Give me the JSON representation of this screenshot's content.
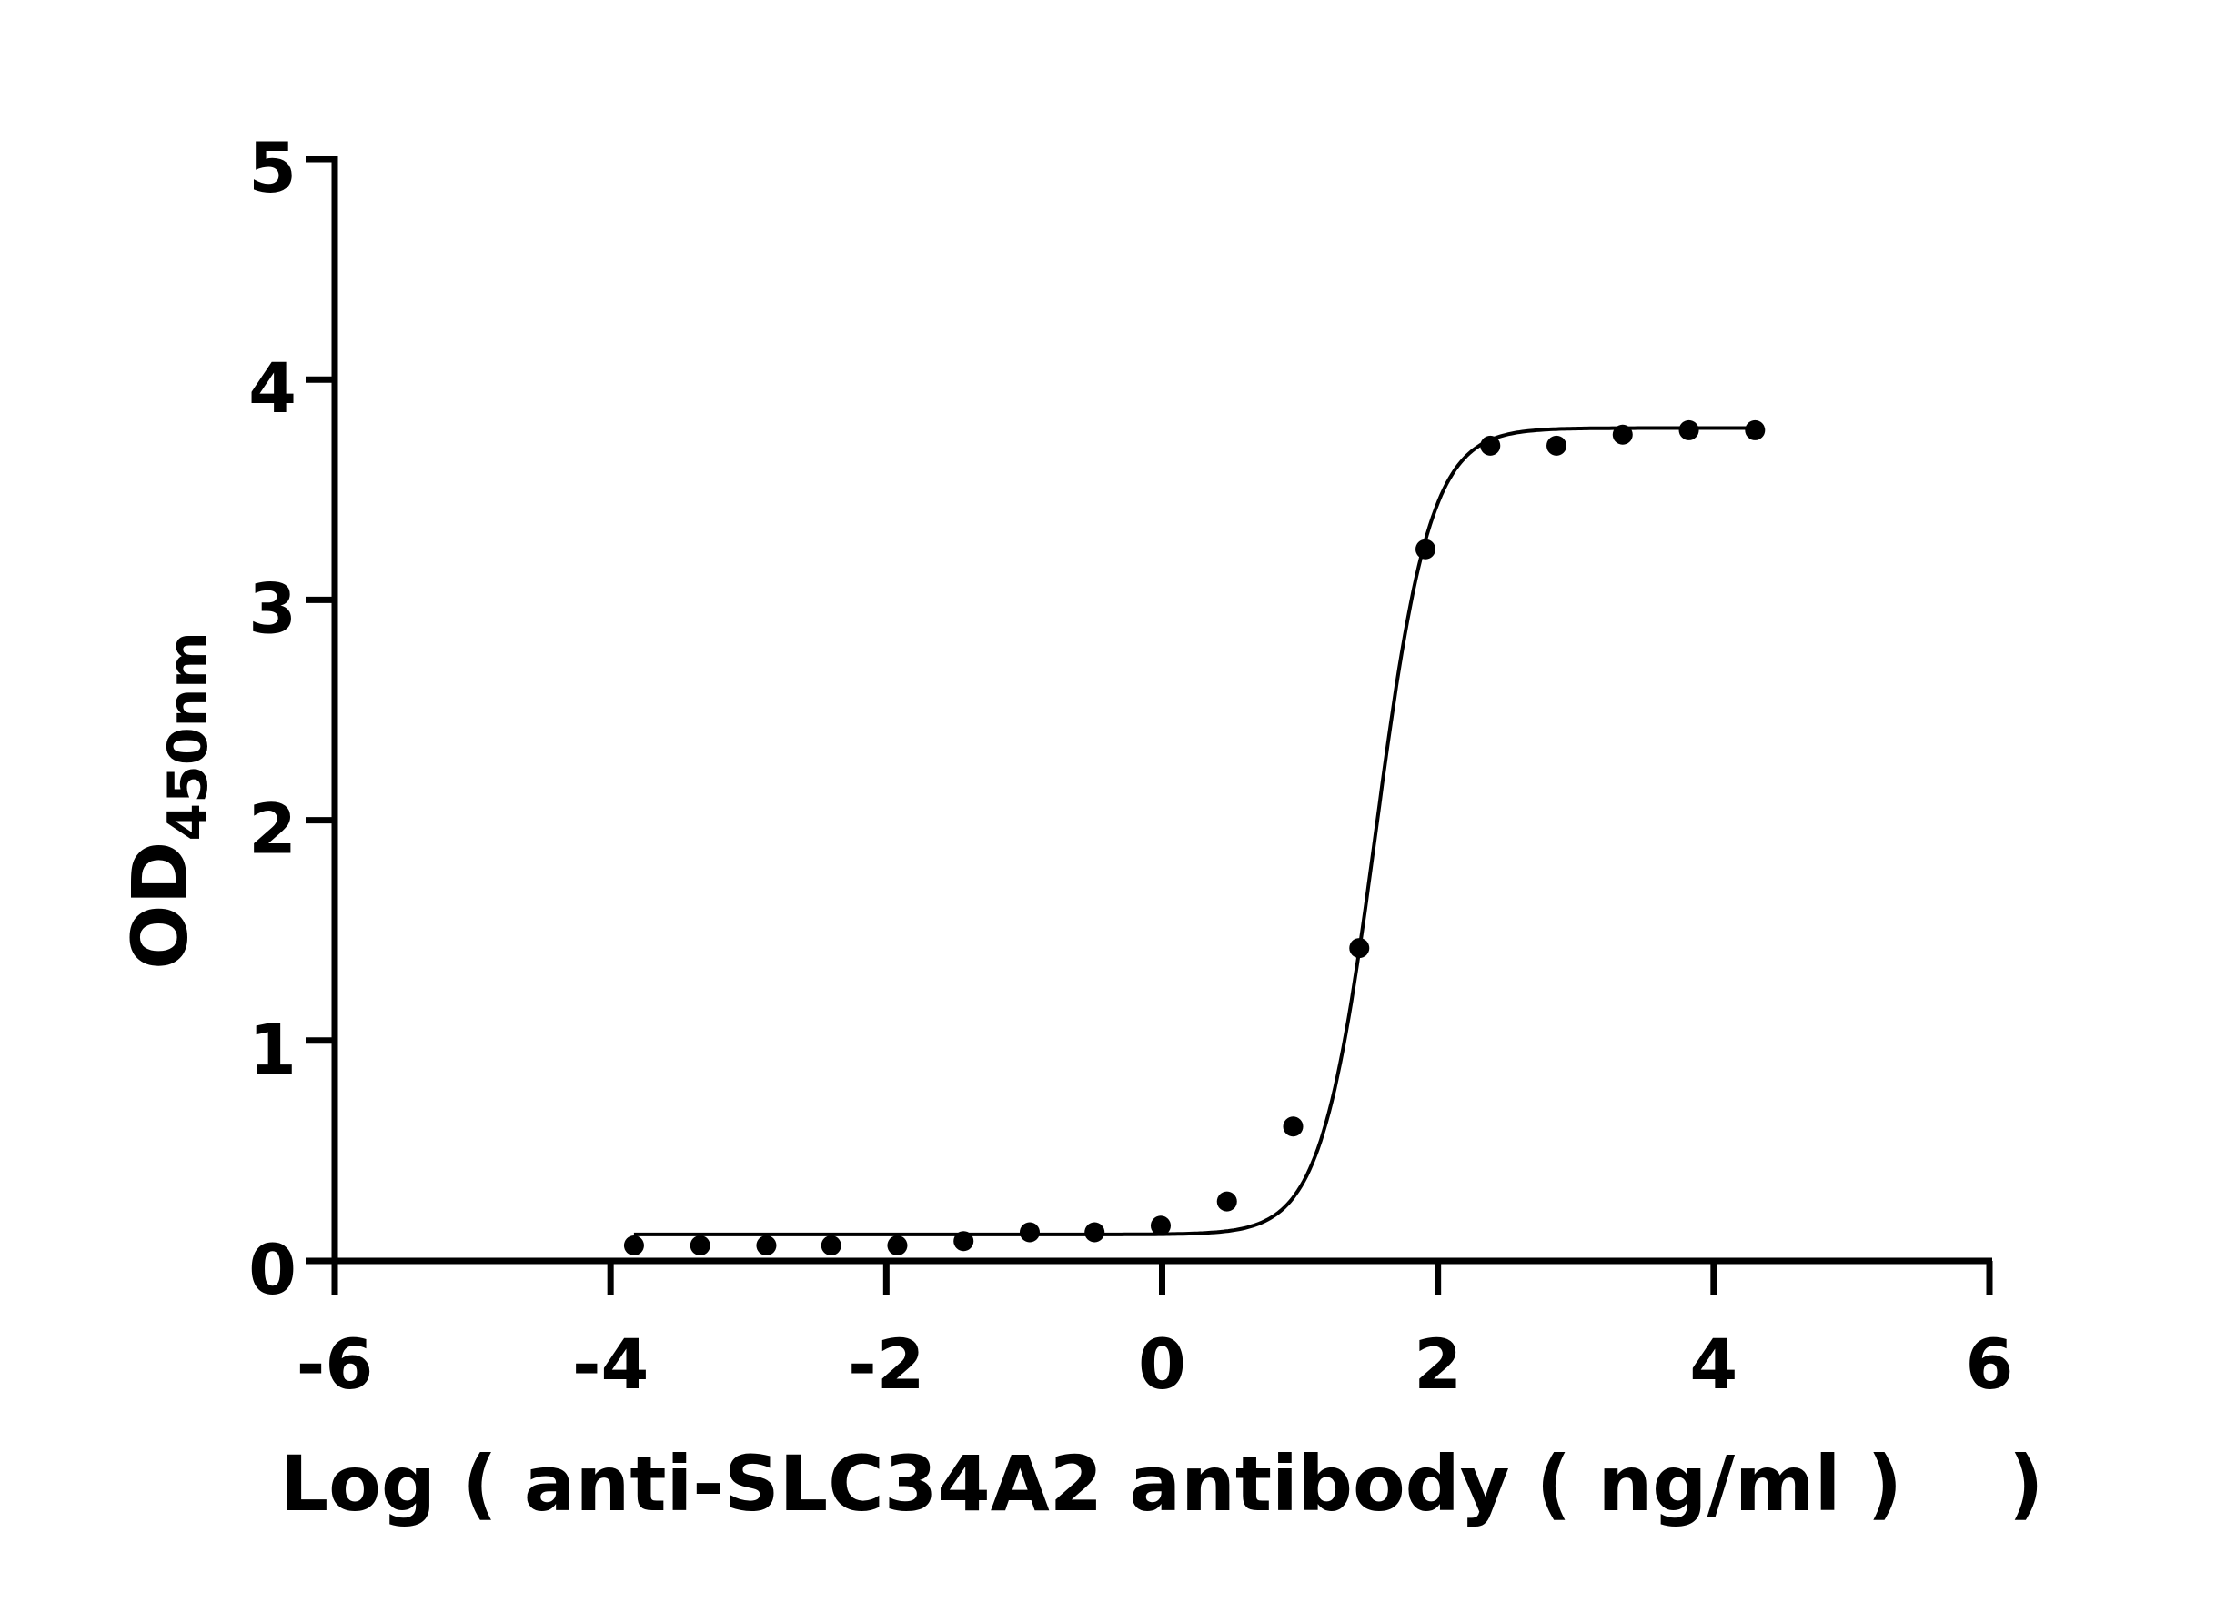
{
  "chart_data": {
    "type": "scatter",
    "title": "",
    "xlabel": "Log ( anti-SLC34A2 antibody ( ng/ml )    )",
    "ylabel_main": "OD",
    "ylabel_sub": "450nm",
    "xlim": [
      -6,
      6
    ],
    "ylim": [
      0,
      5
    ],
    "xticks": [
      -6,
      -4,
      -2,
      0,
      2,
      4,
      6
    ],
    "xtick_labels": [
      "-6",
      "-4",
      "-2",
      "0",
      "2",
      "4",
      "6"
    ],
    "yticks": [
      0,
      1,
      2,
      3,
      4,
      5
    ],
    "ytick_labels": [
      "0",
      "1",
      "2",
      "3",
      "4",
      "5"
    ],
    "grid": false,
    "color": "#000000",
    "points": {
      "x": [
        -3.83,
        -3.35,
        -2.87,
        -2.4,
        -1.92,
        -1.44,
        -0.96,
        -0.49,
        -0.01,
        0.47,
        0.95,
        1.43,
        1.91,
        2.38,
        2.86,
        3.34,
        3.82,
        4.3
      ],
      "y": [
        0.07,
        0.07,
        0.07,
        0.07,
        0.07,
        0.09,
        0.13,
        0.13,
        0.16,
        0.27,
        0.61,
        1.42,
        3.23,
        3.7,
        3.7,
        3.75,
        3.77,
        3.77
      ]
    },
    "fit": {
      "model": "4PL",
      "bottom": 0.12,
      "top": 3.78,
      "logEC50": 1.55,
      "hill": 2.2,
      "x_range": [
        -3.83,
        4.3
      ]
    }
  }
}
